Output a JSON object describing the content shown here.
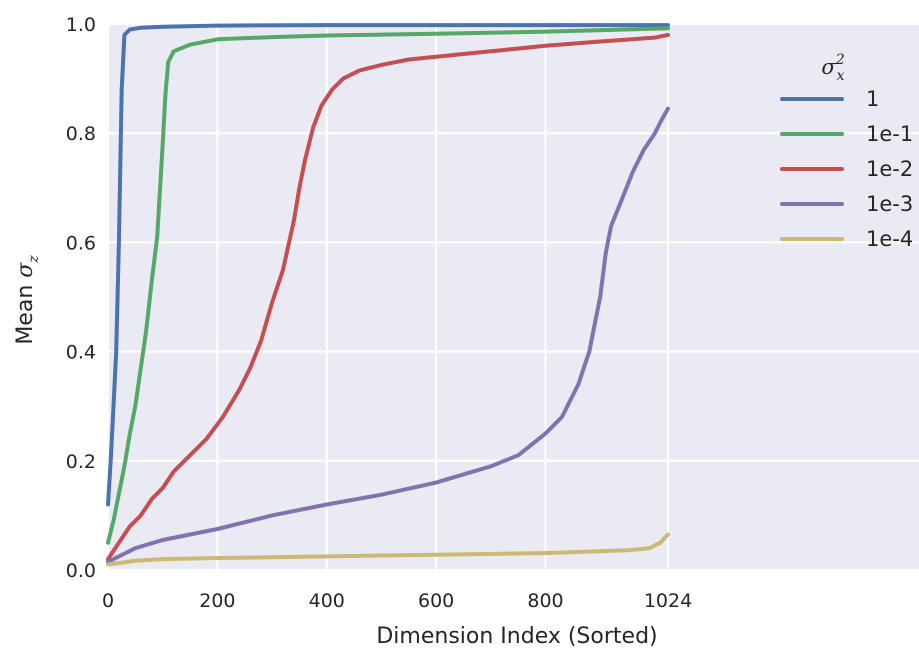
{
  "chart_data": {
    "type": "line",
    "xlabel": "Dimension Index (Sorted)",
    "ylabel_text": "Mean ",
    "ylabel_symbol": "σ",
    "ylabel_subscript": "z",
    "xlim": [
      0,
      1024
    ],
    "ylim": [
      0.0,
      1.0
    ],
    "x_ticks": [
      0,
      200,
      400,
      600,
      800,
      1024
    ],
    "x_tick_labels": [
      "0",
      "200",
      "400",
      "600",
      "800",
      "1024"
    ],
    "y_ticks": [
      0.0,
      0.2,
      0.4,
      0.6,
      0.8,
      1.0
    ],
    "y_tick_labels": [
      "0.0",
      "0.2",
      "0.4",
      "0.6",
      "0.8",
      "1.0"
    ],
    "grid": true,
    "background": "#eaeaf2",
    "legend": {
      "placement": "right",
      "title_symbol": "σ",
      "title_superscript": "2",
      "title_subscript": "x"
    },
    "series": [
      {
        "name": "1",
        "color": "#4c72b0",
        "points": [
          [
            0,
            0.12
          ],
          [
            5,
            0.2
          ],
          [
            10,
            0.3
          ],
          [
            15,
            0.4
          ],
          [
            20,
            0.6
          ],
          [
            25,
            0.88
          ],
          [
            30,
            0.98
          ],
          [
            40,
            0.99
          ],
          [
            60,
            0.993
          ],
          [
            100,
            0.995
          ],
          [
            200,
            0.997
          ],
          [
            400,
            0.998
          ],
          [
            600,
            0.998
          ],
          [
            800,
            0.998
          ],
          [
            1024,
            0.998
          ]
        ]
      },
      {
        "name": "1e-1",
        "color": "#55a868",
        "points": [
          [
            0,
            0.05
          ],
          [
            10,
            0.09
          ],
          [
            20,
            0.14
          ],
          [
            30,
            0.19
          ],
          [
            40,
            0.25
          ],
          [
            50,
            0.3
          ],
          [
            60,
            0.37
          ],
          [
            70,
            0.44
          ],
          [
            80,
            0.53
          ],
          [
            90,
            0.61
          ],
          [
            100,
            0.78
          ],
          [
            105,
            0.87
          ],
          [
            110,
            0.93
          ],
          [
            120,
            0.95
          ],
          [
            150,
            0.962
          ],
          [
            200,
            0.972
          ],
          [
            300,
            0.976
          ],
          [
            400,
            0.979
          ],
          [
            600,
            0.982
          ],
          [
            800,
            0.986
          ],
          [
            1024,
            0.992
          ]
        ]
      },
      {
        "name": "1e-2",
        "color": "#c44e52",
        "points": [
          [
            0,
            0.02
          ],
          [
            20,
            0.05
          ],
          [
            40,
            0.08
          ],
          [
            60,
            0.1
          ],
          [
            80,
            0.13
          ],
          [
            100,
            0.15
          ],
          [
            120,
            0.18
          ],
          [
            150,
            0.21
          ],
          [
            180,
            0.24
          ],
          [
            210,
            0.28
          ],
          [
            240,
            0.33
          ],
          [
            260,
            0.37
          ],
          [
            280,
            0.42
          ],
          [
            300,
            0.49
          ],
          [
            320,
            0.55
          ],
          [
            340,
            0.64
          ],
          [
            350,
            0.7
          ],
          [
            360,
            0.75
          ],
          [
            375,
            0.81
          ],
          [
            390,
            0.85
          ],
          [
            410,
            0.88
          ],
          [
            430,
            0.9
          ],
          [
            460,
            0.915
          ],
          [
            500,
            0.925
          ],
          [
            550,
            0.935
          ],
          [
            600,
            0.94
          ],
          [
            700,
            0.95
          ],
          [
            800,
            0.96
          ],
          [
            900,
            0.968
          ],
          [
            1000,
            0.975
          ],
          [
            1024,
            0.98
          ]
        ]
      },
      {
        "name": "1e-3",
        "color": "#8172b2",
        "points": [
          [
            0,
            0.015
          ],
          [
            50,
            0.04
          ],
          [
            100,
            0.055
          ],
          [
            200,
            0.075
          ],
          [
            300,
            0.1
          ],
          [
            400,
            0.12
          ],
          [
            500,
            0.138
          ],
          [
            600,
            0.16
          ],
          [
            700,
            0.19
          ],
          [
            750,
            0.21
          ],
          [
            800,
            0.25
          ],
          [
            830,
            0.28
          ],
          [
            860,
            0.34
          ],
          [
            880,
            0.4
          ],
          [
            890,
            0.45
          ],
          [
            900,
            0.5
          ],
          [
            910,
            0.58
          ],
          [
            920,
            0.63
          ],
          [
            940,
            0.68
          ],
          [
            960,
            0.73
          ],
          [
            980,
            0.77
          ],
          [
            1000,
            0.8
          ],
          [
            1010,
            0.82
          ],
          [
            1024,
            0.845
          ]
        ]
      },
      {
        "name": "1e-4",
        "color": "#ccb974",
        "points": [
          [
            0,
            0.01
          ],
          [
            50,
            0.017
          ],
          [
            100,
            0.02
          ],
          [
            200,
            0.022
          ],
          [
            400,
            0.025
          ],
          [
            600,
            0.028
          ],
          [
            800,
            0.031
          ],
          [
            950,
            0.036
          ],
          [
            990,
            0.04
          ],
          [
            1010,
            0.05
          ],
          [
            1024,
            0.065
          ]
        ]
      }
    ]
  }
}
